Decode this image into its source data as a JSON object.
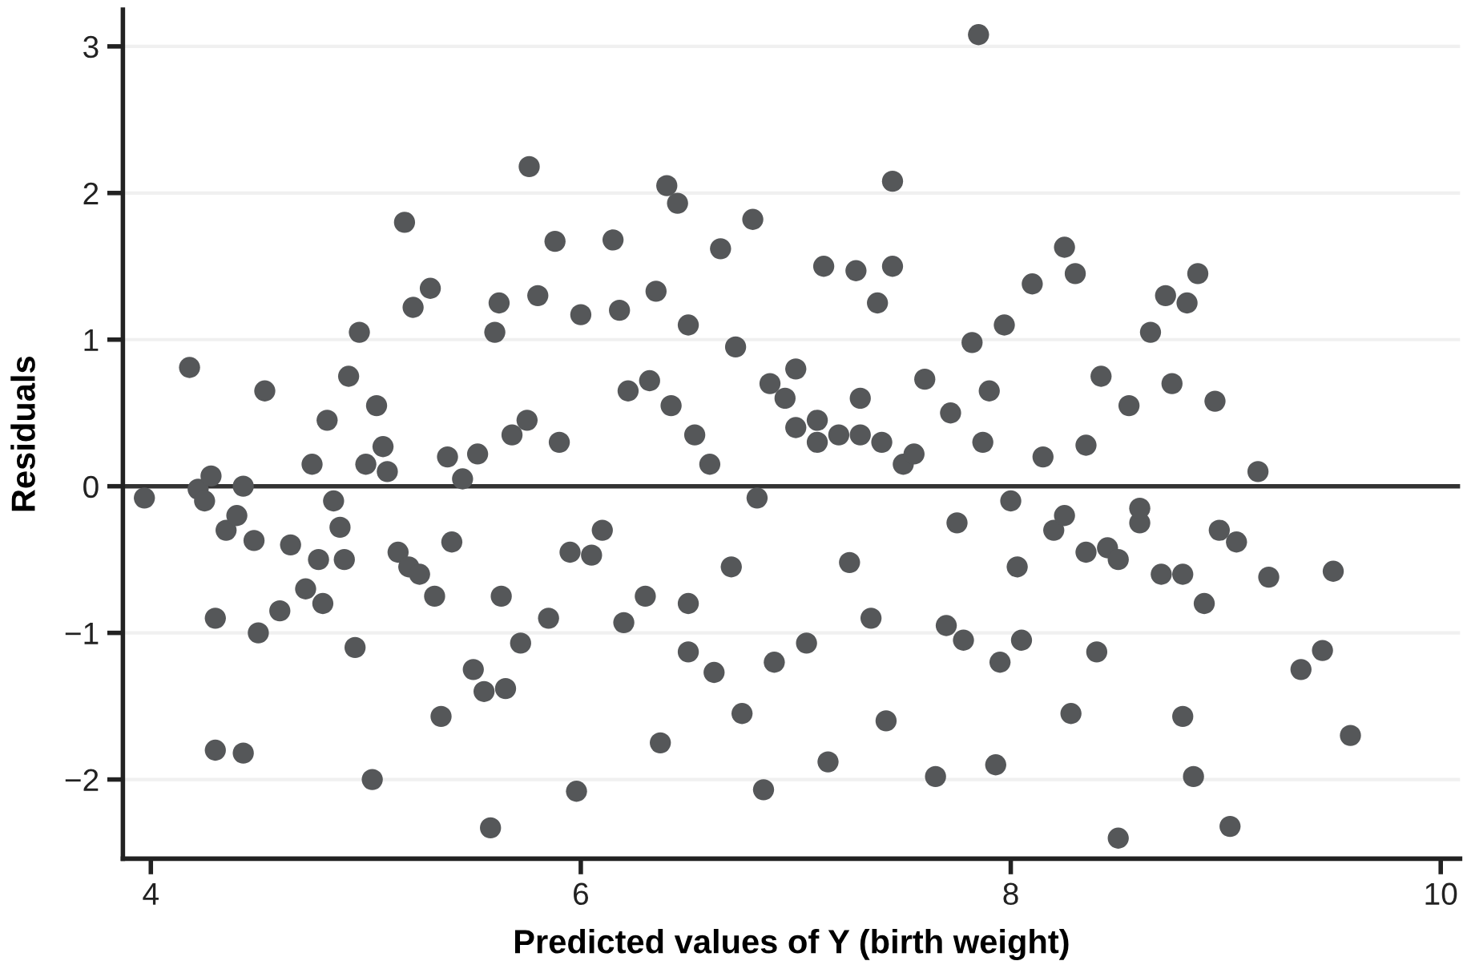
{
  "chart_data": {
    "type": "scatter",
    "xlabel": "Predicted values of Y (birth weight)",
    "ylabel": "Residuals",
    "xlim": [
      3.87,
      10.09
    ],
    "ylim": [
      -2.54,
      3.25
    ],
    "xticks": [
      4,
      6,
      8,
      10
    ],
    "yticks": [
      {
        "value": -2,
        "label": "−2"
      },
      {
        "value": -1,
        "label": "−1"
      },
      0,
      1,
      2,
      3
    ],
    "grid": "y",
    "marker": "circle",
    "legend": false,
    "ref_lines": [
      {
        "axis": "y",
        "value": 0,
        "color": "#333333"
      }
    ],
    "series": [
      {
        "color": "#555759",
        "x": [
          3.97,
          4.18,
          4.22,
          4.25,
          4.28,
          4.3,
          4.3,
          4.35,
          4.4,
          4.43,
          4.43,
          4.48,
          4.5,
          4.53,
          4.6,
          4.65,
          4.72,
          4.75,
          4.78,
          4.8,
          4.82,
          4.85,
          4.88,
          4.9,
          4.92,
          4.95,
          4.97,
          5.0,
          5.03,
          5.05,
          5.08,
          5.1,
          5.15,
          5.18,
          5.2,
          5.22,
          5.25,
          5.3,
          5.32,
          5.35,
          5.38,
          5.4,
          5.45,
          5.5,
          5.52,
          5.55,
          5.58,
          5.6,
          5.62,
          5.63,
          5.65,
          5.68,
          5.72,
          5.75,
          5.76,
          5.8,
          5.85,
          5.88,
          5.9,
          5.95,
          5.98,
          6.0,
          6.05,
          6.1,
          6.15,
          6.18,
          6.2,
          6.22,
          6.3,
          6.32,
          6.35,
          6.37,
          6.4,
          6.42,
          6.45,
          6.5,
          6.5,
          6.5,
          6.53,
          6.6,
          6.62,
          6.65,
          6.7,
          6.72,
          6.75,
          6.8,
          6.82,
          6.85,
          6.88,
          6.9,
          6.95,
          7.0,
          7.05,
          7.1,
          7.13,
          7.15,
          7.2,
          7.25,
          7.28,
          7.3,
          7.35,
          7.38,
          7.4,
          7.42,
          7.45,
          7.45,
          7.5,
          7.55,
          7.6,
          7.65,
          7.7,
          7.72,
          7.75,
          7.78,
          7.82,
          7.85,
          7.87,
          7.9,
          7.93,
          7.95,
          7.97,
          8.0,
          8.03,
          8.05,
          8.1,
          8.15,
          8.2,
          8.25,
          8.28,
          8.3,
          8.35,
          8.4,
          8.42,
          8.45,
          8.5,
          8.55,
          8.6,
          8.65,
          8.7,
          8.72,
          8.75,
          8.8,
          8.82,
          8.85,
          8.87,
          8.9,
          8.95,
          8.97,
          9.02,
          9.05,
          9.15,
          9.2,
          9.35,
          9.45,
          9.5,
          9.58,
          7.0,
          7.1,
          7.3,
          8.25,
          8.35,
          8.5,
          8.6,
          8.8
        ],
        "values": [
          -0.08,
          0.81,
          -0.02,
          -0.1,
          0.07,
          -0.9,
          -1.8,
          -0.3,
          -0.2,
          0.0,
          -1.82,
          -0.37,
          -1.0,
          0.65,
          -0.85,
          -0.4,
          -0.7,
          0.15,
          -0.5,
          -0.8,
          0.45,
          -0.1,
          -0.28,
          -0.5,
          0.75,
          -1.1,
          1.05,
          0.15,
          -2.0,
          0.55,
          0.27,
          0.1,
          -0.45,
          1.8,
          -0.55,
          1.22,
          -0.6,
          1.35,
          -0.75,
          -1.57,
          0.2,
          -0.38,
          0.05,
          -1.25,
          0.22,
          -1.4,
          -2.33,
          1.05,
          1.25,
          -0.75,
          -1.38,
          0.35,
          -1.07,
          0.45,
          2.18,
          1.3,
          -0.9,
          1.67,
          0.3,
          -0.45,
          -2.08,
          1.17,
          -0.47,
          -0.3,
          1.68,
          1.2,
          -0.93,
          0.65,
          -0.75,
          0.72,
          1.33,
          -1.75,
          2.05,
          0.55,
          1.93,
          1.1,
          -0.8,
          -1.13,
          0.35,
          0.15,
          -1.27,
          1.62,
          -0.55,
          0.95,
          -1.55,
          1.82,
          -0.08,
          -2.07,
          0.7,
          -1.2,
          0.6,
          0.8,
          -1.07,
          0.45,
          1.5,
          -1.88,
          0.35,
          -0.52,
          1.47,
          0.6,
          -0.9,
          1.25,
          0.3,
          -1.6,
          2.08,
          1.5,
          0.15,
          0.22,
          0.73,
          -1.98,
          -0.95,
          0.5,
          -0.25,
          -1.05,
          0.98,
          3.08,
          0.3,
          0.65,
          -1.9,
          -1.2,
          1.1,
          -0.1,
          -0.55,
          -1.05,
          1.38,
          0.2,
          -0.3,
          1.63,
          -1.55,
          1.45,
          0.28,
          -1.13,
          0.75,
          -0.42,
          -2.4,
          0.55,
          -0.25,
          1.05,
          -0.6,
          1.3,
          0.7,
          -1.57,
          1.25,
          -1.98,
          1.45,
          -0.8,
          0.58,
          -0.3,
          -2.32,
          -0.38,
          0.1,
          -0.62,
          -1.25,
          -1.12,
          -0.58,
          -1.7,
          0.4,
          0.3,
          0.35,
          -0.2,
          -0.45,
          -0.5,
          -0.15,
          -0.6
        ]
      }
    ]
  }
}
